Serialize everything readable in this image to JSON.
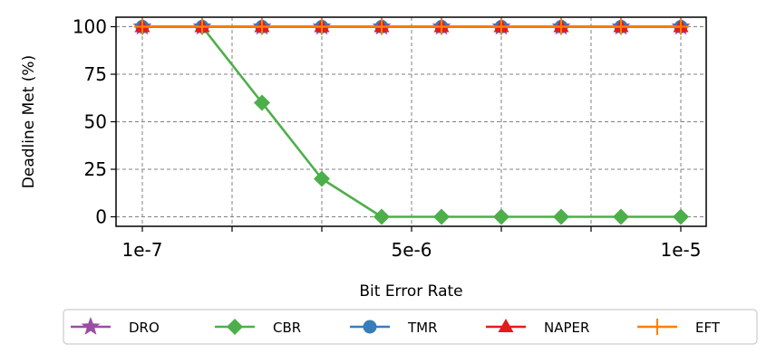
{
  "chart_data": {
    "type": "line",
    "xlabel": "Bit Error Rate",
    "ylabel": "Deadline Met (%)",
    "x": [
      "1e-7",
      "1.2e-6",
      "2.3e-6",
      "3.4e-6",
      "4.5e-6",
      "5.6e-6",
      "6.7e-6",
      "7.8e-6",
      "8.9e-6",
      "1e-5"
    ],
    "xticks_labeled": [
      "1e-7",
      "5e-6",
      "1e-5"
    ],
    "yticks": [
      "0",
      "25",
      "50",
      "75",
      "100"
    ],
    "ylim": [
      -5,
      105
    ],
    "grid": true,
    "legend_position": "below",
    "series": [
      {
        "name": "DRO",
        "color": "#984ea3",
        "marker": "star",
        "values": [
          100,
          100,
          100,
          100,
          100,
          100,
          100,
          100,
          100,
          100
        ]
      },
      {
        "name": "CBR",
        "color": "#4daf4a",
        "marker": "diamond",
        "values": [
          100,
          100,
          60,
          20,
          0,
          0,
          0,
          0,
          0,
          0
        ]
      },
      {
        "name": "TMR",
        "color": "#377eb8",
        "marker": "circle",
        "values": [
          100,
          100,
          100,
          100,
          100,
          100,
          100,
          100,
          100,
          100
        ]
      },
      {
        "name": "NAPER",
        "color": "#e41a1c",
        "marker": "triangle",
        "values": [
          100,
          100,
          100,
          100,
          100,
          100,
          100,
          100,
          100,
          100
        ]
      },
      {
        "name": "EFT",
        "color": "#ff7f00",
        "marker": "plus",
        "values": [
          100,
          100,
          100,
          100,
          100,
          100,
          100,
          100,
          100,
          100
        ]
      }
    ]
  }
}
